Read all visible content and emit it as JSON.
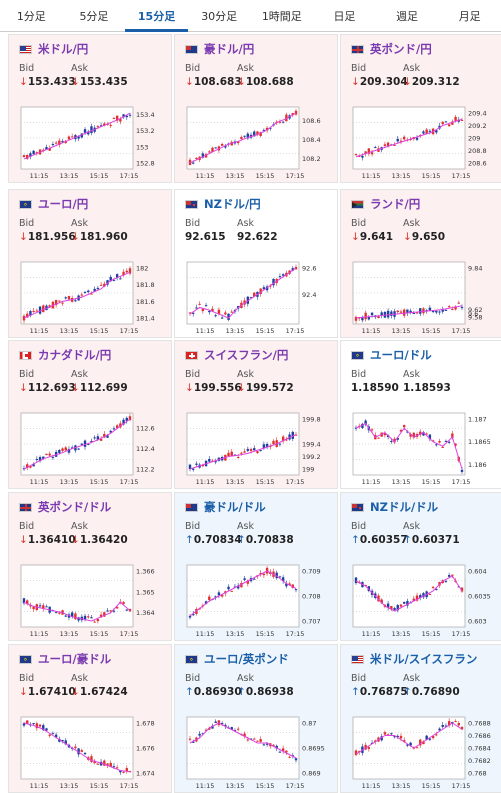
{
  "tabs": [
    {
      "label": "1分足"
    },
    {
      "label": "5分足"
    },
    {
      "label": "15分足",
      "active": true
    },
    {
      "label": "30分足"
    },
    {
      "label": "1時間足"
    },
    {
      "label": "日足"
    },
    {
      "label": "週足"
    },
    {
      "label": "月足"
    }
  ],
  "labels": {
    "bid": "Bid",
    "ask": "Ask"
  },
  "xticks": [
    "11:15",
    "13:15",
    "15:15",
    "17:15"
  ],
  "pairs": [
    {
      "name": "米ドル/円",
      "flag": "us-flag",
      "dir": "down",
      "bid": "153.433",
      "ask": "153.435",
      "ticks": [
        "153.4",
        "153.2",
        "153",
        "152.8"
      ],
      "trend": [
        152.85,
        152.9,
        152.95,
        153.0,
        153.05,
        153.1,
        153.15,
        153.2,
        153.25,
        153.3,
        153.35,
        153.42
      ]
    },
    {
      "name": "豪ドル/円",
      "flag": "au-flag",
      "dir": "down",
      "bid": "108.683",
      "ask": "108.688",
      "ticks": [
        "108.6",
        "108.4",
        "108.2"
      ],
      "trend": [
        108.15,
        108.2,
        108.25,
        108.3,
        108.35,
        108.38,
        108.42,
        108.45,
        108.5,
        108.58,
        108.62,
        108.68
      ]
    },
    {
      "name": "英ポンド/円",
      "flag": "gb-flag",
      "dir": "down",
      "bid": "209.304",
      "ask": "209.312",
      "ticks": [
        "209.4",
        "209.2",
        "209",
        "208.8",
        "208.6"
      ],
      "trend": [
        208.7,
        208.75,
        208.8,
        208.85,
        208.9,
        208.95,
        209.0,
        209.05,
        209.1,
        209.2,
        209.25,
        209.3
      ]
    },
    {
      "name": "ユーロ/円",
      "flag": "eu-flag",
      "dir": "down",
      "bid": "181.956",
      "ask": "181.960",
      "ticks": [
        "182",
        "181.8",
        "181.6",
        "181.4"
      ],
      "trend": [
        181.4,
        181.45,
        181.5,
        181.55,
        181.6,
        181.62,
        181.65,
        181.7,
        181.75,
        181.85,
        181.9,
        181.95
      ]
    },
    {
      "name": "NZドル/円",
      "flag": "nz-flag",
      "dir": "flat",
      "bid": "92.615",
      "ask": "92.622",
      "ticks": [
        "92.6",
        "92.4"
      ],
      "trend": [
        92.25,
        92.3,
        92.28,
        92.25,
        92.22,
        92.3,
        92.35,
        92.4,
        92.45,
        92.5,
        92.55,
        92.6
      ]
    },
    {
      "name": "ランド/円",
      "flag": "za-flag",
      "dir": "down",
      "bid": "9.641",
      "ask": "9.650",
      "ticks": [
        "9.84",
        "9.62",
        "9.6",
        "9.58"
      ],
      "trend": [
        9.575,
        9.58,
        9.585,
        9.59,
        9.595,
        9.6,
        9.605,
        9.61,
        9.615,
        9.62,
        9.63,
        9.64
      ]
    },
    {
      "name": "カナダドル/円",
      "flag": "ca-flag",
      "dir": "down",
      "bid": "112.693",
      "ask": "112.699",
      "ticks": [
        "112.6",
        "112.4",
        "112.2"
      ],
      "trend": [
        112.2,
        112.25,
        112.3,
        112.33,
        112.36,
        112.4,
        112.43,
        112.46,
        112.5,
        112.55,
        112.62,
        112.69
      ]
    },
    {
      "name": "スイスフラン/円",
      "flag": "ch-flag",
      "dir": "down",
      "bid": "199.556",
      "ask": "199.572",
      "ticks": [
        "199.8",
        "199.4",
        "199.2",
        "199"
      ],
      "trend": [
        199.0,
        199.05,
        199.1,
        199.15,
        199.2,
        199.22,
        199.25,
        199.3,
        199.35,
        199.4,
        199.48,
        199.55
      ]
    },
    {
      "name": "ユーロ/ドル",
      "flag": "eu-flag",
      "dir": "flat",
      "bid": "1.18590",
      "ask": "1.18593",
      "ticks": [
        "1.187",
        "1.1865",
        "1.186"
      ],
      "trend": [
        1.1868,
        1.1869,
        1.1866,
        1.1867,
        1.1865,
        1.1868,
        1.1866,
        1.1867,
        1.1865,
        1.1864,
        1.1866,
        1.1859
      ]
    },
    {
      "name": "英ポンド/ドル",
      "flag": "gb-flag",
      "dir": "down",
      "bid": "1.36410",
      "ask": "1.36420",
      "ticks": [
        "1.366",
        "1.365",
        "1.364"
      ],
      "trend": [
        1.3645,
        1.3643,
        1.3642,
        1.3641,
        1.364,
        1.3638,
        1.3637,
        1.3636,
        1.3638,
        1.364,
        1.3645,
        1.3641
      ]
    },
    {
      "name": "豪ドル/ドル",
      "flag": "au-flag",
      "dir": "up",
      "bid": "0.70834",
      "ask": "0.70838",
      "ticks": [
        "0.709",
        "0.708",
        "0.707"
      ],
      "trend": [
        0.7072,
        0.7075,
        0.7078,
        0.708,
        0.7082,
        0.7084,
        0.7086,
        0.7088,
        0.709,
        0.7088,
        0.7085,
        0.7083
      ]
    },
    {
      "name": "NZドル/ドル",
      "flag": "nz-flag",
      "dir": "up",
      "bid": "0.60357",
      "ask": "0.60371",
      "ticks": [
        "0.604",
        "0.6035",
        "0.603"
      ],
      "trend": [
        0.6038,
        0.6037,
        0.6035,
        0.6033,
        0.6032,
        0.6033,
        0.6034,
        0.6035,
        0.6036,
        0.6038,
        0.6039,
        0.6036
      ]
    },
    {
      "name": "ユーロ/豪ドル",
      "flag": "eu-flag",
      "dir": "down",
      "bid": "1.67410",
      "ask": "1.67424",
      "ticks": [
        "1.678",
        "1.676",
        "1.674"
      ],
      "trend": [
        1.678,
        1.6778,
        1.6775,
        1.677,
        1.6765,
        1.676,
        1.6755,
        1.675,
        1.6748,
        1.6745,
        1.6742,
        1.6741
      ]
    },
    {
      "name": "ユーロ/英ポンド",
      "flag": "eu-flag",
      "dir": "up",
      "bid": "0.86930",
      "ask": "0.86938",
      "ticks": [
        "0.87",
        "0.8695",
        "0.869"
      ],
      "trend": [
        0.8696,
        0.8697,
        0.8699,
        0.87,
        0.8699,
        0.8698,
        0.8697,
        0.8696,
        0.8696,
        0.8695,
        0.8694,
        0.8693
      ]
    },
    {
      "name": "米ドル/スイスフラン",
      "flag": "us-flag",
      "dir": "up",
      "bid": "0.76875",
      "ask": "0.76890",
      "ticks": [
        "0.7688",
        "0.7686",
        "0.7684",
        "0.7682",
        "0.768"
      ],
      "trend": [
        0.7683,
        0.7684,
        0.7685,
        0.7686,
        0.7686,
        0.7685,
        0.7684,
        0.7685,
        0.7686,
        0.7687,
        0.7688,
        0.7687
      ]
    }
  ],
  "colors": {
    "accent": "#1a5fa8",
    "down": "#d9342b",
    "up": "#1a5fa8",
    "card_down": "#fdf0f0",
    "card_up": "#eef5fc",
    "trend": "#e040e0",
    "bull": "#e03030",
    "bear": "#2040a0"
  }
}
